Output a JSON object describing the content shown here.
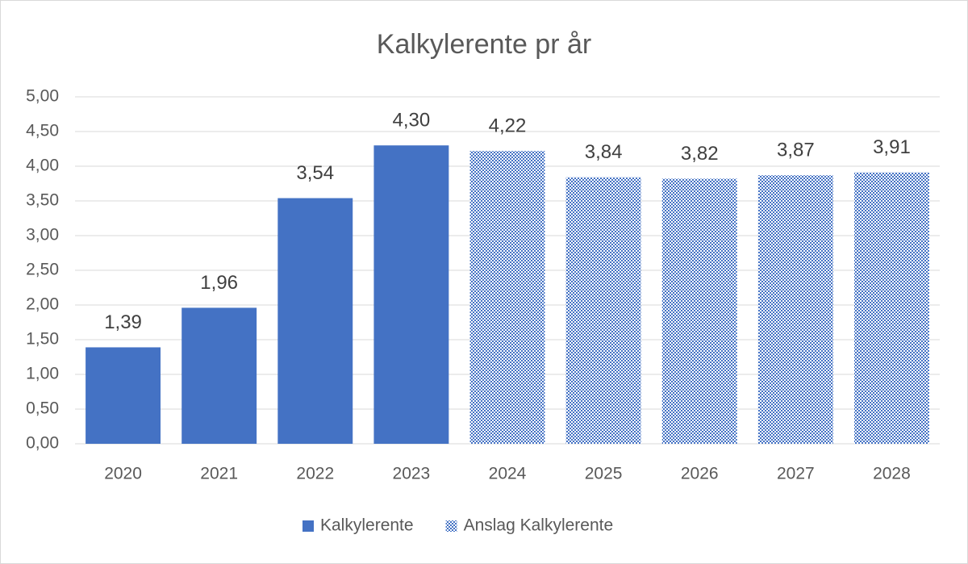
{
  "chart_data": {
    "type": "bar",
    "title": "Kalkylerente pr år",
    "categories": [
      "2020",
      "2021",
      "2022",
      "2023",
      "2024",
      "2025",
      "2026",
      "2027",
      "2028"
    ],
    "series": [
      {
        "name": "Kalkylerente",
        "color": "#4472c4",
        "pattern": "solid",
        "values": [
          1.39,
          1.96,
          3.54,
          4.3,
          null,
          null,
          null,
          null,
          null
        ],
        "value_labels": [
          "1,39",
          "1,96",
          "3,54",
          "4,30",
          null,
          null,
          null,
          null,
          null
        ]
      },
      {
        "name": "Anslag Kalkylerente",
        "color": "#4472c4",
        "pattern": "dots",
        "values": [
          null,
          null,
          null,
          null,
          4.22,
          3.84,
          3.82,
          3.87,
          3.91
        ],
        "value_labels": [
          null,
          null,
          null,
          null,
          "4,22",
          "3,84",
          "3,82",
          "3,87",
          "3,91"
        ]
      }
    ],
    "ylim": [
      0,
      5
    ],
    "yticks": [
      {
        "value": 0,
        "label": "0,00"
      },
      {
        "value": 0.5,
        "label": "0,50"
      },
      {
        "value": 1,
        "label": "1,00"
      },
      {
        "value": 1.5,
        "label": "1,50"
      },
      {
        "value": 2,
        "label": "2,00"
      },
      {
        "value": 2.5,
        "label": "2,50"
      },
      {
        "value": 3,
        "label": "3,00"
      },
      {
        "value": 3.5,
        "label": "3,50"
      },
      {
        "value": 4,
        "label": "4,00"
      },
      {
        "value": 4.5,
        "label": "4,50"
      },
      {
        "value": 5,
        "label": "5,00"
      }
    ],
    "grid": true,
    "legend": "bottom"
  }
}
